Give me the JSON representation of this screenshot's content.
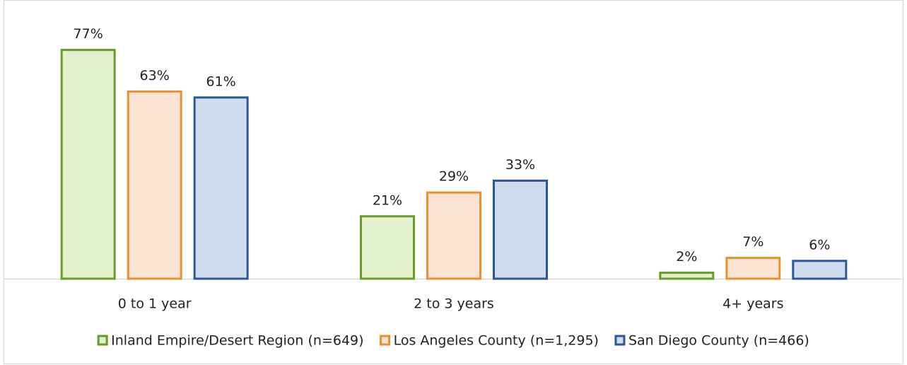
{
  "chart_data": {
    "type": "bar",
    "categories": [
      "0 to 1 year",
      "2 to 3 years",
      "4+ years"
    ],
    "series": [
      {
        "name": "Inland Empire/Desert Region (n=649)",
        "color": "#6a9a2a",
        "fill": "#e2f0cb",
        "values": [
          77,
          21,
          2
        ],
        "value_labels": [
          "77%",
          "21%",
          "2%"
        ]
      },
      {
        "name": "Los Angeles County (n=1,295)",
        "color": "#e8912e",
        "fill": "#fbe3d3",
        "values": [
          63,
          29,
          7
        ],
        "value_labels": [
          "63%",
          "29%",
          "7%"
        ]
      },
      {
        "name": "San Diego County (n=466)",
        "color": "#2e5597",
        "fill": "#cfdcee",
        "values": [
          61,
          33,
          6
        ],
        "value_labels": [
          "61%",
          "33%",
          "6%"
        ]
      }
    ],
    "legend": "bottom"
  }
}
